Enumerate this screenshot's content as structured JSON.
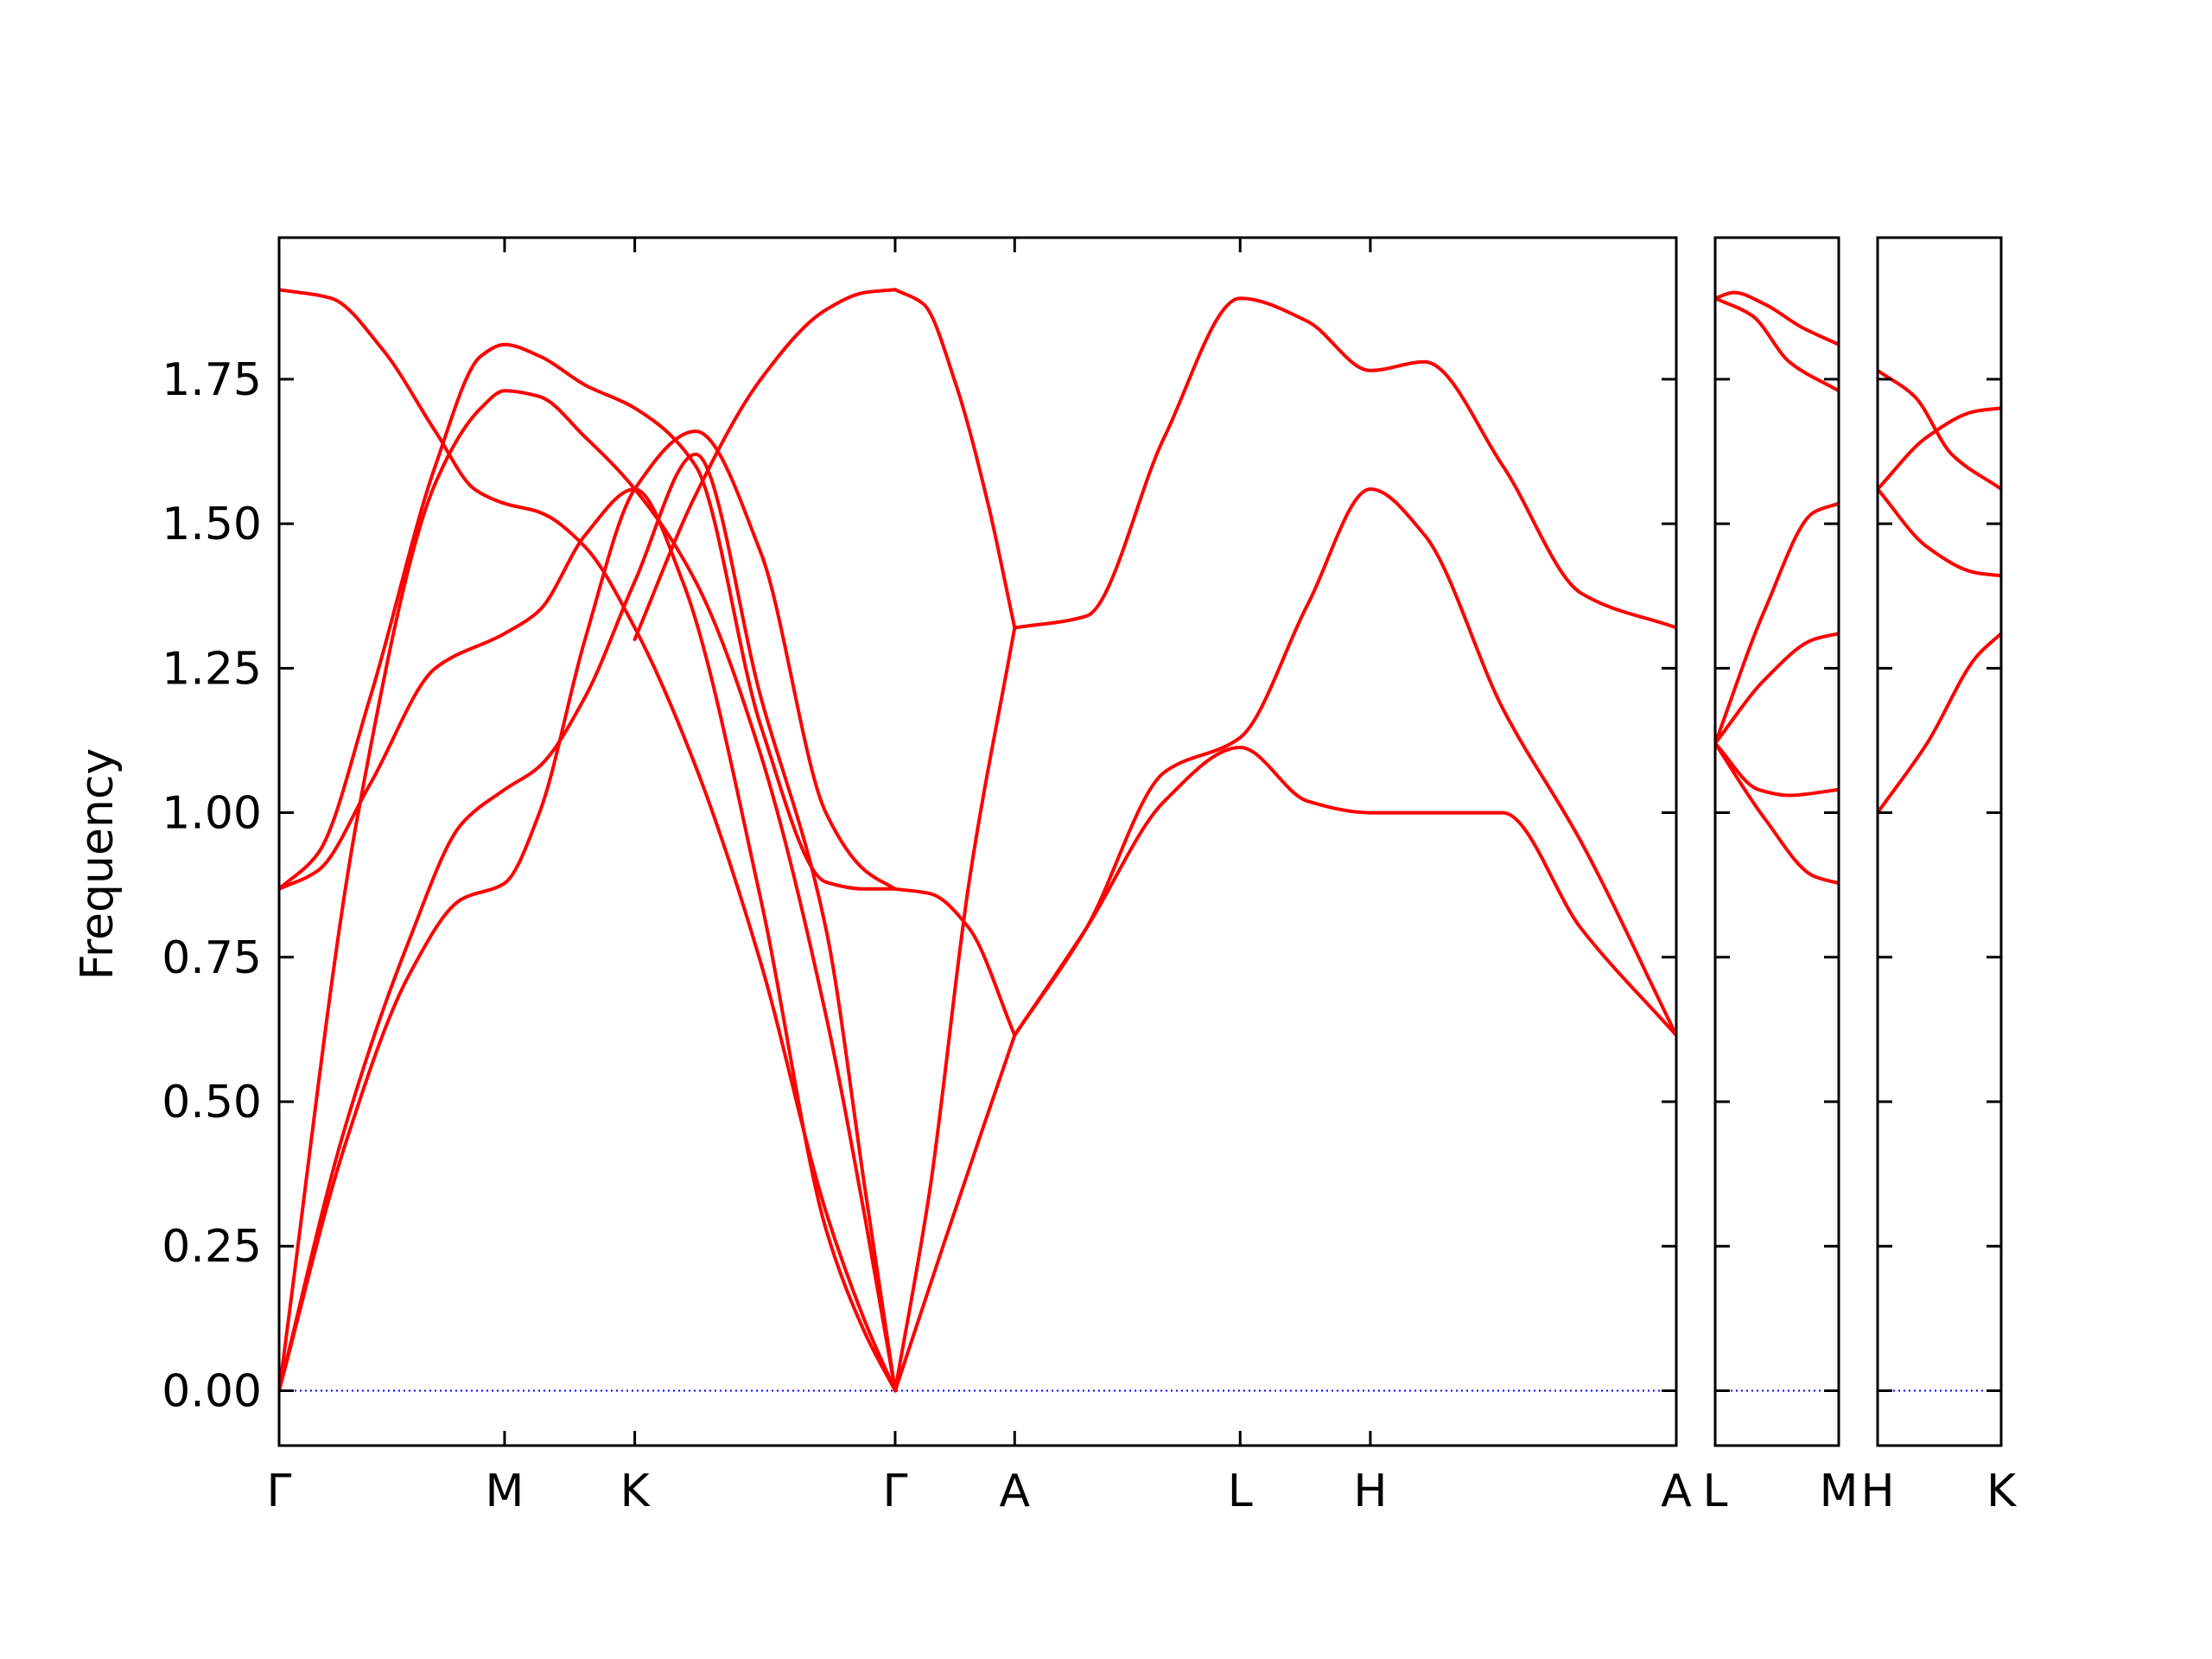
{
  "chart_data": {
    "type": "line",
    "title": "",
    "xlabel": "",
    "ylabel": "Frequency",
    "ylim": [
      -0.095,
      1.995
    ],
    "yticks": [
      0.0,
      0.25,
      0.5,
      0.75,
      1.0,
      1.25,
      1.5,
      1.75
    ],
    "ytick_labels": [
      "0.00",
      "0.25",
      "0.50",
      "0.75",
      "1.00",
      "1.25",
      "1.50",
      "1.75"
    ],
    "grid": false,
    "legend": "none",
    "colors": {
      "bands": "#ff0000",
      "zero_line": "#0000ff",
      "axes": "#000000"
    },
    "panels": [
      {
        "xticks": [
          0,
          1.732,
          2.732,
          4.732,
          5.65,
          7.382,
          8.382,
          10.732
        ],
        "xtick_labels": [
          "Γ",
          "M",
          "K",
          "Γ",
          "A",
          "L",
          "H",
          "A"
        ],
        "xlim": [
          0,
          10.732
        ],
        "series": [
          {
            "x": [
              0,
              0.5,
              1.0,
              1.4,
              1.732,
              2.0,
              2.35,
              2.732,
              3.2,
              3.7,
              4.2,
              4.5,
              4.732
            ],
            "y": [
              0.0,
              0.42,
              0.72,
              0.85,
              0.878,
              1.0,
              1.3,
              1.56,
              1.66,
              1.45,
              1.0,
              0.9,
              0.868
            ]
          },
          {
            "x": [
              0,
              0.5,
              1.0,
              1.4,
              1.732,
              2.0,
              2.35,
              2.732,
              3.2,
              3.7,
              4.2,
              4.5,
              4.732
            ],
            "y": [
              0.0,
              0.45,
              0.78,
              0.98,
              1.04,
              1.08,
              1.2,
              1.4,
              1.62,
              1.2,
              0.8,
              0.35,
              0.0
            ]
          },
          {
            "x": [
              0,
              0.6,
              1.2,
              1.55,
              1.732,
              2.0,
              2.35,
              2.732,
              3.2,
              3.7,
              4.2,
              4.5,
              4.732
            ],
            "y": [
              0.0,
              0.99,
              1.57,
              1.7,
              1.73,
              1.72,
              1.65,
              1.56,
              1.4,
              1.1,
              0.65,
              0.3,
              0.0
            ]
          },
          {
            "x": [
              0,
              0.3,
              0.7,
              1.2,
              1.55,
              1.732,
              2.0,
              2.35,
              2.732,
              3.2,
              3.7,
              4.2,
              4.5,
              4.732
            ],
            "y": [
              0.868,
              0.93,
              1.2,
              1.6,
              1.79,
              1.81,
              1.79,
              1.74,
              1.7,
              1.6,
              1.15,
              0.88,
              0.868,
              0.868
            ]
          },
          {
            "x": [
              0,
              0.3,
              0.7,
              1.2,
              1.732,
              2.0,
              2.35,
              2.732,
              3.1,
              3.7,
              4.2,
              4.5,
              4.732
            ],
            "y": [
              0.868,
              0.9,
              1.05,
              1.25,
              1.31,
              1.35,
              1.48,
              1.56,
              1.4,
              0.85,
              0.28,
              0.1,
              0.0
            ]
          },
          {
            "x": [
              0,
              0.4,
              0.8,
              1.2,
              1.5,
              1.732,
              2.0,
              2.35,
              2.732,
              3.2,
              3.7,
              4.2,
              4.5,
              4.732
            ],
            "y": [
              1.905,
              1.89,
              1.8,
              1.66,
              1.56,
              1.535,
              1.52,
              1.46,
              1.32,
              1.08,
              0.74,
              0.31,
              0.12,
              0.0
            ]
          },
          {
            "x": [
              2.732,
              3.2,
              3.7,
              4.2,
              4.5,
              4.732
            ],
            "y": [
              1.3,
              1.55,
              1.75,
              1.87,
              1.9,
              1.905
            ]
          },
          {
            "x": [
              4.732,
              4.95,
              5.2,
              5.45,
              5.65
            ],
            "y": [
              1.905,
              1.88,
              1.74,
              1.53,
              1.32
            ]
          },
          {
            "x": [
              4.732,
              5.0,
              5.3,
              5.65
            ],
            "y": [
              0.0,
              0.35,
              0.88,
              1.32
            ]
          },
          {
            "x": [
              4.732,
              5.0,
              5.3,
              5.65
            ],
            "y": [
              0.868,
              0.86,
              0.8,
              0.615
            ]
          },
          {
            "x": [
              4.732,
              5.1,
              5.4,
              5.65
            ],
            "y": [
              0.0,
              0.25,
              0.45,
              0.615
            ]
          },
          {
            "x": [
              5.65,
              6.2,
              6.8,
              7.382,
              7.9,
              8.382,
              8.8,
              9.4,
              10.0,
              10.732
            ],
            "y": [
              1.32,
              1.34,
              1.65,
              1.89,
              1.85,
              1.765,
              1.78,
              1.6,
              1.38,
              1.32
            ]
          },
          {
            "x": [
              5.65,
              6.2,
              6.8,
              7.382,
              7.9,
              8.382,
              8.8,
              9.4,
              10.0,
              10.732
            ],
            "y": [
              0.615,
              0.8,
              1.07,
              1.13,
              1.36,
              1.56,
              1.48,
              1.18,
              0.95,
              0.615
            ]
          },
          {
            "x": [
              5.65,
              6.2,
              6.8,
              7.382,
              7.9,
              8.382,
              8.8,
              9.4,
              10.0,
              10.732
            ],
            "y": [
              0.615,
              0.8,
              1.02,
              1.113,
              1.02,
              1.0,
              1.0,
              1.0,
              0.8,
              0.615
            ]
          }
        ]
      },
      {
        "xticks": [
          0,
          1.0
        ],
        "xtick_labels": [
          "L",
          "M"
        ],
        "xlim": [
          0,
          1.0
        ],
        "series": [
          {
            "x": [
              0,
              0.15,
              0.4,
              0.7,
              1.0
            ],
            "y": [
              1.89,
              1.9,
              1.88,
              1.84,
              1.81
            ]
          },
          {
            "x": [
              0,
              0.3,
              0.6,
              1.0
            ],
            "y": [
              1.89,
              1.86,
              1.78,
              1.73
            ]
          },
          {
            "x": [
              0,
              0.4,
              0.8,
              1.0
            ],
            "y": [
              1.12,
              1.35,
              1.52,
              1.535
            ]
          },
          {
            "x": [
              0,
              0.4,
              0.8,
              1.0
            ],
            "y": [
              1.12,
              1.23,
              1.3,
              1.31
            ]
          },
          {
            "x": [
              0,
              0.35,
              0.6,
              1.0
            ],
            "y": [
              1.12,
              1.04,
              1.03,
              1.04
            ]
          },
          {
            "x": [
              0,
              0.4,
              0.8,
              1.0
            ],
            "y": [
              1.12,
              0.99,
              0.89,
              0.878
            ]
          }
        ]
      },
      {
        "xticks": [
          0,
          1.0
        ],
        "xtick_labels": [
          "H",
          "K"
        ],
        "xlim": [
          0,
          1.0
        ],
        "series": [
          {
            "x": [
              0,
              0.3,
              0.6,
              1.0
            ],
            "y": [
              1.765,
              1.72,
              1.62,
              1.56
            ]
          },
          {
            "x": [
              0,
              0.4,
              0.8,
              1.0
            ],
            "y": [
              1.56,
              1.65,
              1.695,
              1.7
            ]
          },
          {
            "x": [
              0,
              0.4,
              0.8,
              1.0
            ],
            "y": [
              1.56,
              1.46,
              1.415,
              1.41
            ]
          },
          {
            "x": [
              0,
              0.4,
              0.8,
              1.0
            ],
            "y": [
              1.0,
              1.12,
              1.27,
              1.31
            ]
          }
        ]
      }
    ]
  }
}
